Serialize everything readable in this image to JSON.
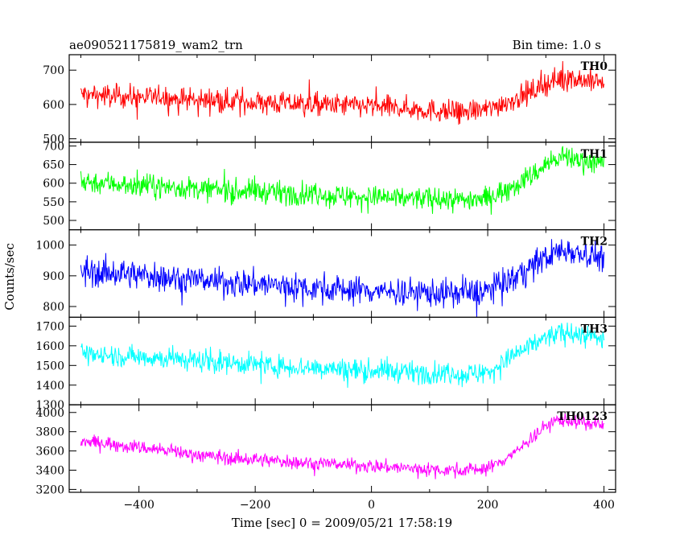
{
  "chart_data": {
    "type": "line",
    "title": "ae090521175819_wam2_trn",
    "bin_time_label": "Bin time: 1.0 s",
    "xlabel": "Time [sec] 0 = 2009/05/21 17:58:19",
    "ylabel": "Counts/sec",
    "xlim": [
      -520,
      420
    ],
    "x_ticks": [
      -400,
      -200,
      0,
      200,
      400
    ],
    "x_tick_labels": [
      "−400",
      "−200",
      "0",
      "200",
      "400"
    ],
    "grid": false,
    "x_sampled": [
      -500,
      -450,
      -400,
      -350,
      -300,
      -250,
      -200,
      -150,
      -100,
      -50,
      0,
      50,
      100,
      150,
      200,
      220,
      250,
      280,
      300,
      320,
      340,
      360,
      380,
      400
    ],
    "series": [
      {
        "name": "TH0",
        "color": "#ff0000",
        "ylim": [
          490,
          745
        ],
        "y_ticks": [
          500,
          600,
          700
        ],
        "noise": 30,
        "values": [
          630,
          625,
          622,
          618,
          614,
          610,
          606,
          602,
          600,
          597,
          595,
          590,
          583,
          578,
          585,
          600,
          618,
          640,
          660,
          675,
          675,
          672,
          668,
          665
        ]
      },
      {
        "name": "TH1",
        "color": "#00ff00",
        "ylim": [
          475,
          710
        ],
        "y_ticks": [
          500,
          550,
          600,
          650,
          700
        ],
        "noise": 28,
        "values": [
          605,
          600,
          595,
          590,
          585,
          580,
          578,
          574,
          570,
          566,
          562,
          560,
          558,
          555,
          560,
          575,
          600,
          625,
          650,
          665,
          668,
          662,
          658,
          652
        ]
      },
      {
        "name": "TH2",
        "color": "#0000ff",
        "ylim": [
          765,
          1050
        ],
        "y_ticks": [
          800,
          900,
          1000
        ],
        "noise": 42,
        "values": [
          915,
          910,
          902,
          895,
          888,
          880,
          874,
          868,
          862,
          856,
          852,
          848,
          845,
          842,
          850,
          870,
          900,
          935,
          960,
          980,
          985,
          975,
          968,
          960
        ]
      },
      {
        "name": "TH3",
        "color": "#00ffff",
        "ylim": [
          1300,
          1745
        ],
        "y_ticks": [
          1300,
          1400,
          1500,
          1600,
          1700
        ],
        "noise": 50,
        "values": [
          1560,
          1552,
          1545,
          1535,
          1525,
          1515,
          1505,
          1495,
          1488,
          1480,
          1474,
          1468,
          1462,
          1455,
          1465,
          1500,
          1560,
          1610,
          1640,
          1660,
          1665,
          1655,
          1645,
          1635
        ]
      },
      {
        "name": "TH0123",
        "color": "#ff00ff",
        "ylim": [
          3170,
          4080
        ],
        "y_ticks": [
          3200,
          3400,
          3600,
          3800,
          4000
        ],
        "noise": 65,
        "values": [
          3700,
          3680,
          3640,
          3600,
          3560,
          3530,
          3510,
          3490,
          3475,
          3460,
          3445,
          3425,
          3410,
          3400,
          3420,
          3480,
          3600,
          3760,
          3860,
          3920,
          3920,
          3895,
          3875,
          3860
        ]
      }
    ]
  }
}
